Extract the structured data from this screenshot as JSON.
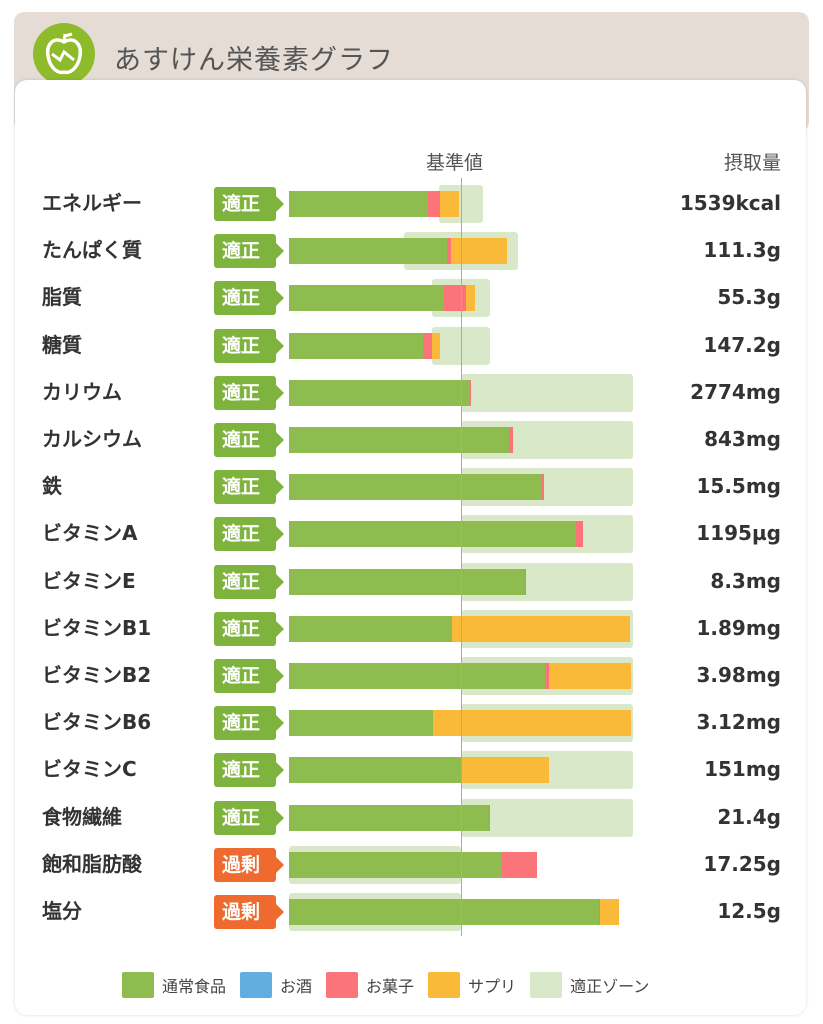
{
  "header": {
    "title": "あすけん栄養素グラフ"
  },
  "colors": {
    "food": "#8fbc4f",
    "alcohol": "#62aee0",
    "snack": "#fb7479",
    "supplement": "#fbb939",
    "zone": "#d9e8c8",
    "ok": "#7eb33e",
    "over": "#ee6a2f"
  },
  "chart_data": {
    "type": "bar",
    "title": "あすけん栄養素グラフ",
    "xlabel": "基準値",
    "ylabel": "摂取量",
    "unit": "percent of reference value",
    "xlim": [
      0,
      200
    ],
    "reference": 100,
    "legend": [
      "通常食品",
      "お酒",
      "お菓子",
      "サプリ",
      "適正ゾーン"
    ],
    "legend_position": "bottom",
    "rows": [
      {
        "name": "エネルギー",
        "status": "適正",
        "value": "1539kcal",
        "food": 81,
        "alcohol": 0,
        "snack": 7,
        "supplement": 11,
        "zone": [
          87,
          113
        ]
      },
      {
        "name": "たんぱく質",
        "status": "適正",
        "value": "111.3g",
        "food": 92,
        "alcohol": 0,
        "snack": 2,
        "supplement": 33,
        "zone": [
          67,
          133
        ]
      },
      {
        "name": "脂質",
        "status": "適正",
        "value": "55.3g",
        "food": 90,
        "alcohol": 0,
        "snack": 13,
        "supplement": 5,
        "zone": [
          83,
          117
        ]
      },
      {
        "name": "糖質",
        "status": "適正",
        "value": "147.2g",
        "food": 78,
        "alcohol": 0,
        "snack": 5,
        "supplement": 5,
        "zone": [
          83,
          117
        ]
      },
      {
        "name": "カリウム",
        "status": "適正",
        "value": "2774mg",
        "food": 105,
        "alcohol": 0,
        "snack": 1,
        "supplement": 0,
        "zone": [
          100,
          200
        ]
      },
      {
        "name": "カルシウム",
        "status": "適正",
        "value": "843mg",
        "food": 128,
        "alcohol": 0,
        "snack": 2,
        "supplement": 0,
        "zone": [
          100,
          200
        ]
      },
      {
        "name": "鉄",
        "status": "適正",
        "value": "15.5mg",
        "food": 147,
        "alcohol": 0,
        "snack": 1,
        "supplement": 0,
        "zone": [
          100,
          200
        ]
      },
      {
        "name": "ビタミンA",
        "status": "適正",
        "value": "1195µg",
        "food": 167,
        "alcohol": 0,
        "snack": 4,
        "supplement": 0,
        "zone": [
          100,
          200
        ]
      },
      {
        "name": "ビタミンE",
        "status": "適正",
        "value": "8.3mg",
        "food": 137,
        "alcohol": 0,
        "snack": 1,
        "supplement": 0,
        "zone": [
          100,
          200
        ]
      },
      {
        "name": "ビタミンB1",
        "status": "適正",
        "value": "1.89mg",
        "food": 95,
        "alcohol": 0,
        "snack": 0,
        "supplement": 103,
        "zone": [
          100,
          200
        ]
      },
      {
        "name": "ビタミンB2",
        "status": "適正",
        "value": "3.98mg",
        "food": 149,
        "alcohol": 0,
        "snack": 2,
        "supplement": 48,
        "zone": [
          100,
          200
        ]
      },
      {
        "name": "ビタミンB6",
        "status": "適正",
        "value": "3.12mg",
        "food": 84,
        "alcohol": 0,
        "snack": 0,
        "supplement": 115,
        "zone": [
          100,
          200
        ]
      },
      {
        "name": "ビタミンC",
        "status": "適正",
        "value": "151mg",
        "food": 100,
        "alcohol": 0,
        "snack": 0,
        "supplement": 51,
        "zone": [
          100,
          200
        ]
      },
      {
        "name": "食物繊維",
        "status": "適正",
        "value": "21.4g",
        "food": 116,
        "alcohol": 0,
        "snack": 1,
        "supplement": 0,
        "zone": [
          100,
          200
        ]
      },
      {
        "name": "飽和脂肪酸",
        "status": "過剰",
        "value": "17.25g",
        "food": 124,
        "alcohol": 0,
        "snack": 20,
        "supplement": 0,
        "zone": [
          0,
          100
        ]
      },
      {
        "name": "塩分",
        "status": "過剰",
        "value": "12.5g",
        "food": 180,
        "alcohol": 0,
        "snack": 1,
        "supplement": 11,
        "zone": [
          0,
          100
        ]
      }
    ]
  }
}
